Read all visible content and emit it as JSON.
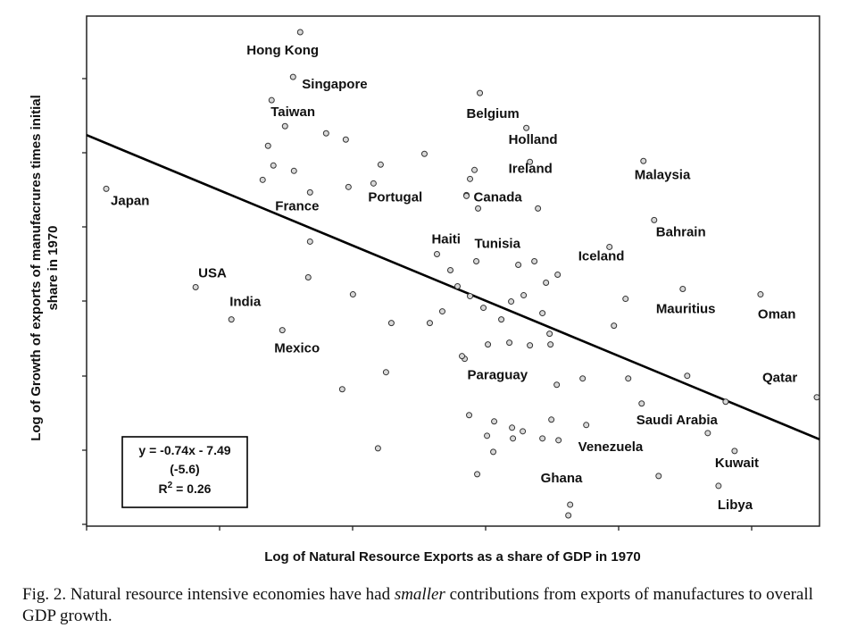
{
  "caption": {
    "prefix": "Fig. 2. Natural resource intensive economies have had ",
    "emphasis": "smaller",
    "suffix": " contributions from exports of manufactures to overall GDP growth."
  },
  "chart_data": {
    "type": "scatter",
    "title": "",
    "xlabel": "Log of Natural Resource Exports as a share of GDP in 1970",
    "ylabel": "Log of Growth of exports of manufacrures times initial share in 1970",
    "xlim": [
      0,
      820
    ],
    "ylim": [
      0,
      570
    ],
    "grid": false,
    "legend": "none",
    "equation_box": {
      "line1": "y = -0.74x - 7.49",
      "line2": "(-5.6)",
      "line3_prefix": "R",
      "line3_suffix": " = 0.26"
    },
    "trendline": {
      "x": [
        0,
        820
      ],
      "y": [
        437,
        97
      ]
    },
    "points": [
      {
        "x": 22,
        "y": 377,
        "label": "Japan"
      },
      {
        "x": 122,
        "y": 267,
        "label": "USA"
      },
      {
        "x": 162,
        "y": 231,
        "label": "India"
      },
      {
        "x": 219,
        "y": 219,
        "label": "Mexico"
      },
      {
        "x": 239,
        "y": 552,
        "label": "Hong Kong"
      },
      {
        "x": 231,
        "y": 502,
        "label": "Singapore"
      },
      {
        "x": 207,
        "y": 476,
        "label": "Taiwan"
      },
      {
        "x": 250,
        "y": 373,
        "label": "France"
      },
      {
        "x": 321,
        "y": 383,
        "label": "Portugal"
      },
      {
        "x": 440,
        "y": 484,
        "label": "Belgium"
      },
      {
        "x": 492,
        "y": 445,
        "label": "Holland"
      },
      {
        "x": 496,
        "y": 407,
        "label": "Ireland"
      },
      {
        "x": 425,
        "y": 370,
        "label": "Canada"
      },
      {
        "x": 392,
        "y": 304,
        "label": "Haiti"
      },
      {
        "x": 436,
        "y": 296,
        "label": "Tunisia"
      },
      {
        "x": 585,
        "y": 312,
        "label": "Iceland"
      },
      {
        "x": 623,
        "y": 408,
        "label": "Malaysia"
      },
      {
        "x": 635,
        "y": 342,
        "label": "Bahrain"
      },
      {
        "x": 667,
        "y": 265,
        "label": "Mauritius"
      },
      {
        "x": 754,
        "y": 259,
        "label": "Oman"
      },
      {
        "x": 817,
        "y": 144,
        "label": "Qatar"
      },
      {
        "x": 423,
        "y": 187,
        "label": "Paraguay"
      },
      {
        "x": 621,
        "y": 137,
        "label": "Saudi Arabia"
      },
      {
        "x": 559,
        "y": 113,
        "label": "Venezuela"
      },
      {
        "x": 725,
        "y": 84,
        "label": "Kuwait"
      },
      {
        "x": 707,
        "y": 45,
        "label": "Libya"
      },
      {
        "x": 541,
        "y": 24,
        "label": "Ghana"
      },
      {
        "x": 539,
        "y": 12
      },
      {
        "x": 222,
        "y": 447
      },
      {
        "x": 268,
        "y": 439
      },
      {
        "x": 290,
        "y": 432
      },
      {
        "x": 203,
        "y": 425
      },
      {
        "x": 209,
        "y": 403
      },
      {
        "x": 232,
        "y": 397
      },
      {
        "x": 197,
        "y": 387
      },
      {
        "x": 293,
        "y": 379
      },
      {
        "x": 329,
        "y": 404
      },
      {
        "x": 378,
        "y": 416
      },
      {
        "x": 434,
        "y": 398
      },
      {
        "x": 429,
        "y": 388
      },
      {
        "x": 425,
        "y": 369
      },
      {
        "x": 438,
        "y": 355
      },
      {
        "x": 505,
        "y": 355
      },
      {
        "x": 250,
        "y": 318
      },
      {
        "x": 248,
        "y": 278
      },
      {
        "x": 298,
        "y": 259
      },
      {
        "x": 341,
        "y": 227
      },
      {
        "x": 384,
        "y": 227
      },
      {
        "x": 398,
        "y": 240
      },
      {
        "x": 407,
        "y": 286
      },
      {
        "x": 415,
        "y": 268
      },
      {
        "x": 429,
        "y": 257
      },
      {
        "x": 444,
        "y": 244
      },
      {
        "x": 464,
        "y": 231
      },
      {
        "x": 475,
        "y": 251
      },
      {
        "x": 483,
        "y": 292
      },
      {
        "x": 489,
        "y": 258
      },
      {
        "x": 501,
        "y": 296
      },
      {
        "x": 514,
        "y": 272
      },
      {
        "x": 527,
        "y": 281
      },
      {
        "x": 510,
        "y": 238
      },
      {
        "x": 518,
        "y": 215
      },
      {
        "x": 519,
        "y": 203
      },
      {
        "x": 496,
        "y": 202
      },
      {
        "x": 473,
        "y": 205
      },
      {
        "x": 449,
        "y": 203
      },
      {
        "x": 420,
        "y": 190
      },
      {
        "x": 590,
        "y": 224
      },
      {
        "x": 603,
        "y": 254
      },
      {
        "x": 335,
        "y": 172
      },
      {
        "x": 286,
        "y": 153
      },
      {
        "x": 526,
        "y": 158
      },
      {
        "x": 555,
        "y": 165
      },
      {
        "x": 606,
        "y": 165
      },
      {
        "x": 672,
        "y": 168
      },
      {
        "x": 428,
        "y": 124
      },
      {
        "x": 456,
        "y": 117
      },
      {
        "x": 476,
        "y": 110
      },
      {
        "x": 488,
        "y": 106
      },
      {
        "x": 520,
        "y": 119
      },
      {
        "x": 477,
        "y": 98
      },
      {
        "x": 510,
        "y": 98
      },
      {
        "x": 528,
        "y": 96
      },
      {
        "x": 448,
        "y": 101
      },
      {
        "x": 455,
        "y": 83
      },
      {
        "x": 326,
        "y": 87
      },
      {
        "x": 437,
        "y": 58
      },
      {
        "x": 640,
        "y": 56
      },
      {
        "x": 695,
        "y": 104
      },
      {
        "x": 715,
        "y": 139
      }
    ]
  }
}
